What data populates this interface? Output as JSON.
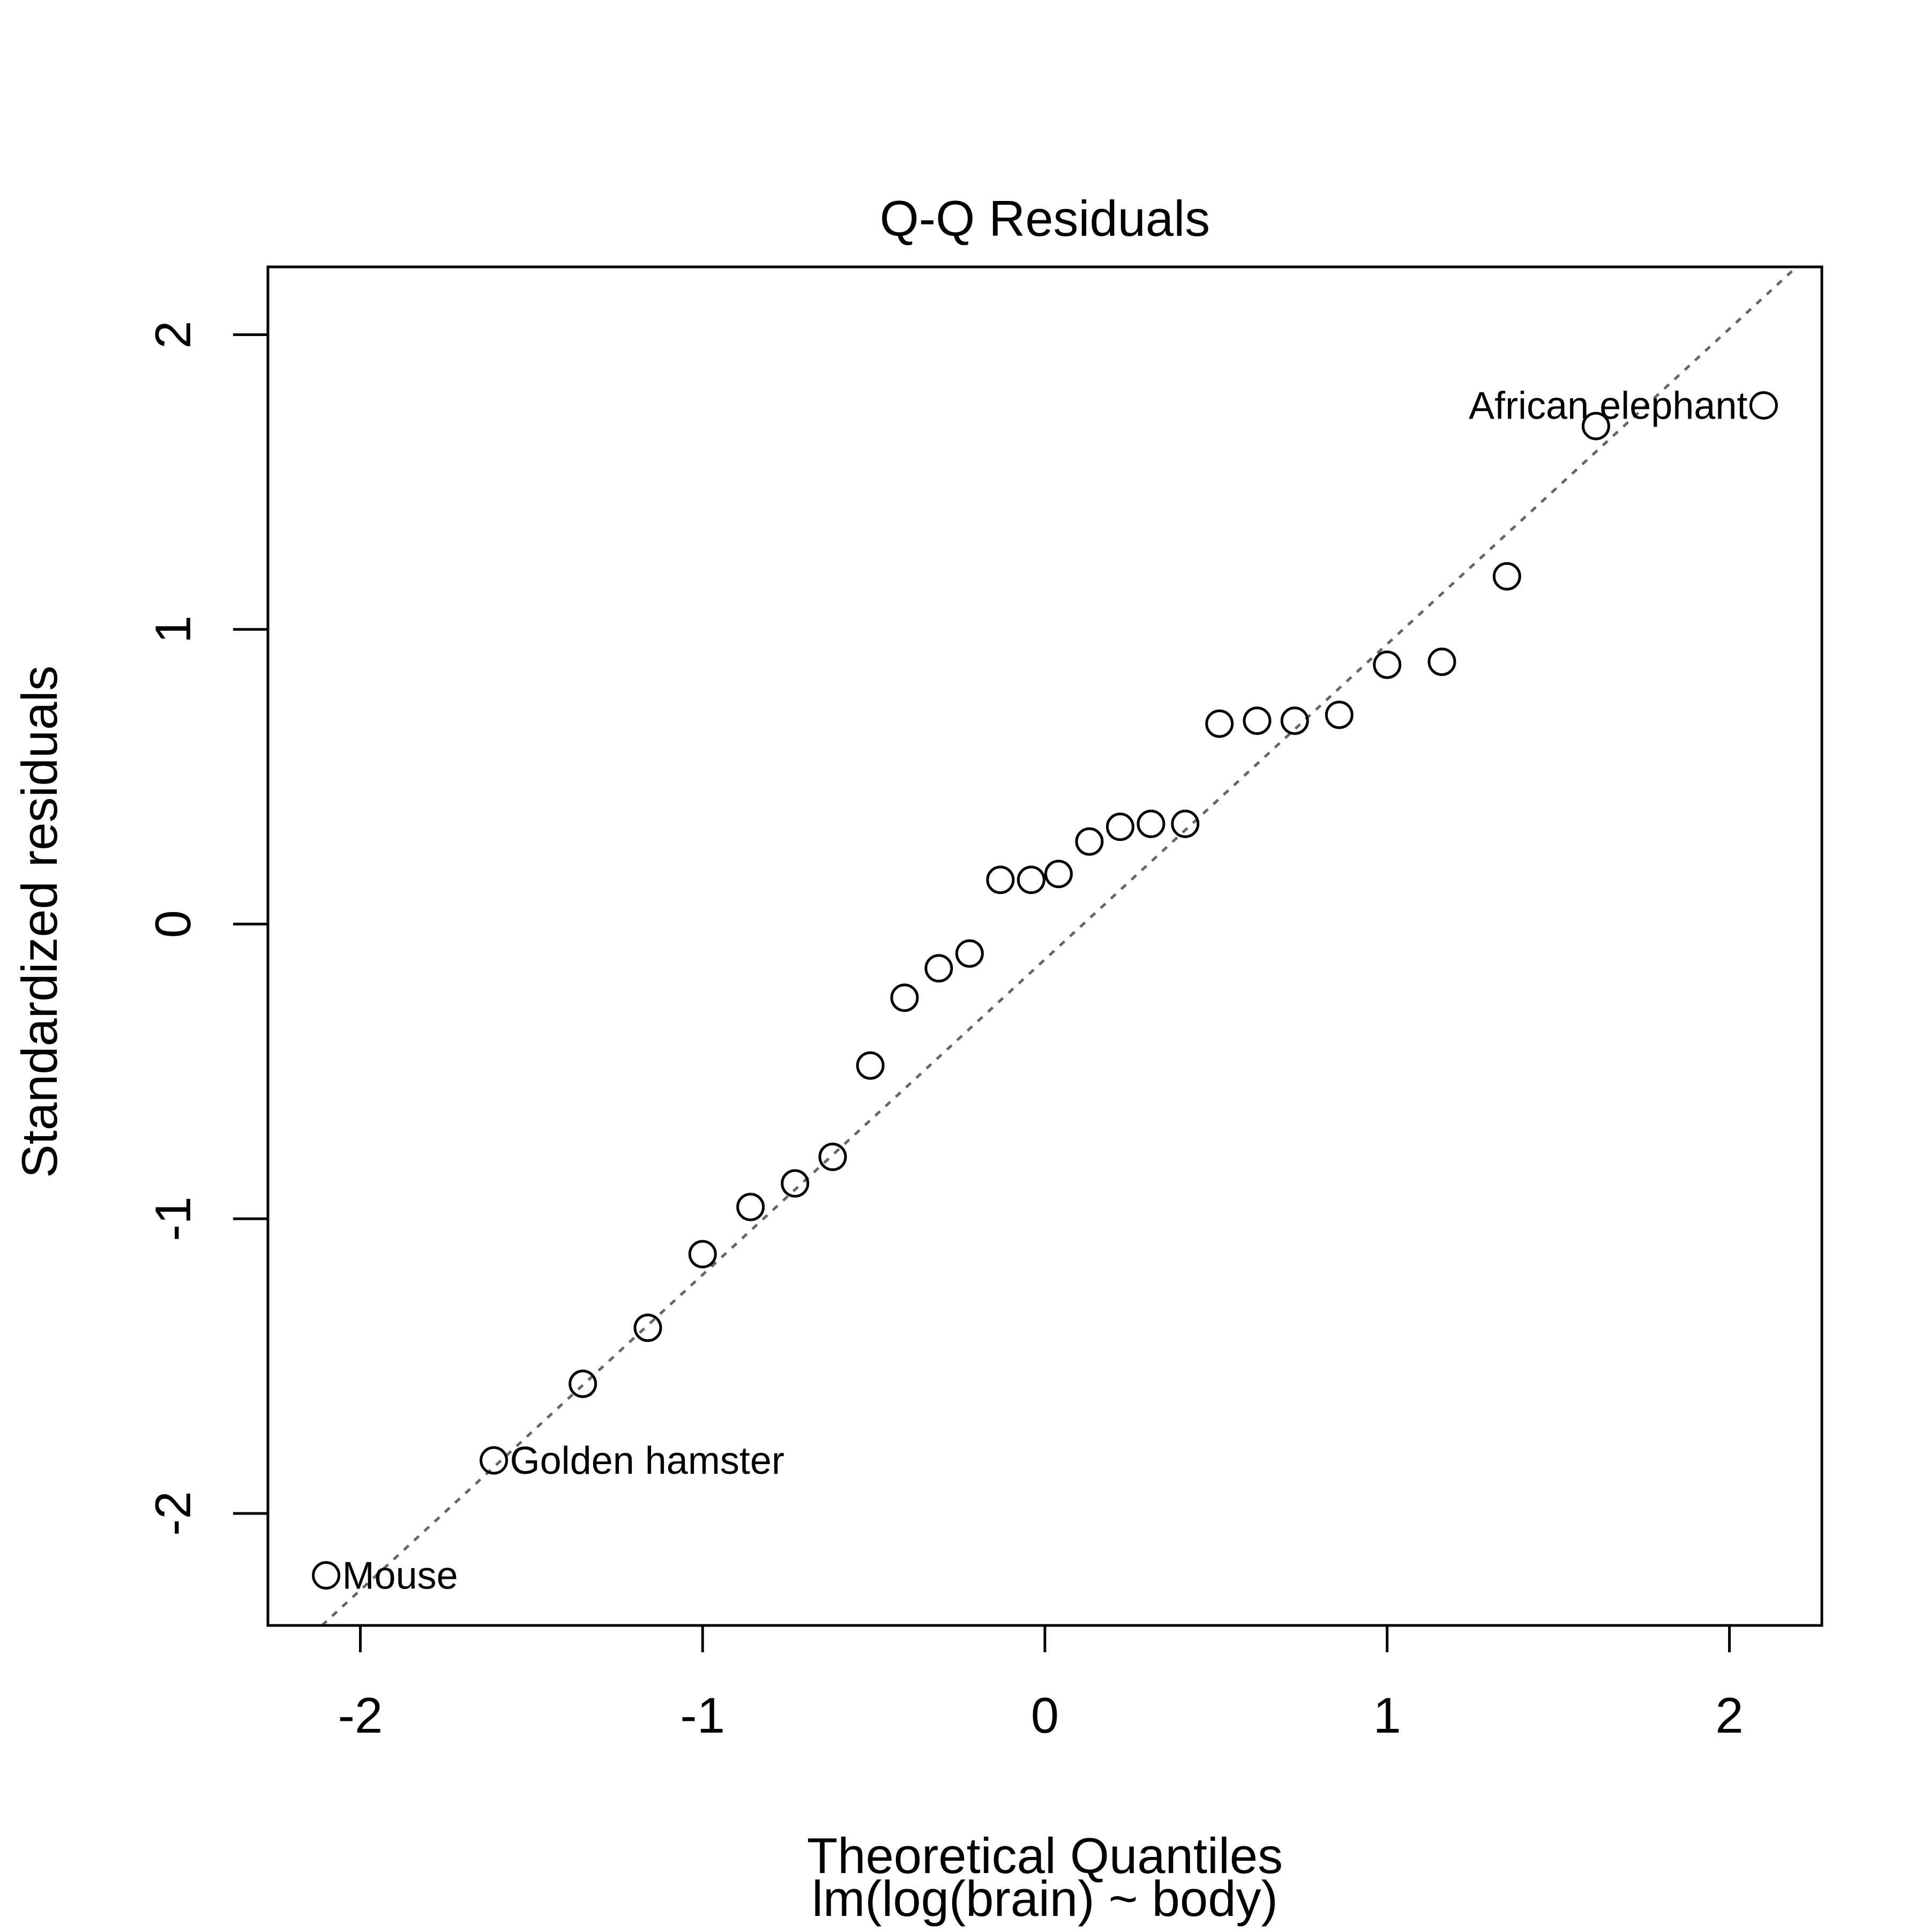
{
  "chart_data": {
    "type": "scatter",
    "title": "Q-Q Residuals",
    "xlabel": "Theoretical Quantiles",
    "xlabel_sub": "lm(log(brain) ~ body)",
    "ylabel": "Standardized residuals",
    "xlim": [
      -2.27,
      2.27
    ],
    "ylim": [
      -2.38,
      2.23
    ],
    "xticks": [
      -2,
      -1,
      0,
      1,
      2
    ],
    "xtick_labels": [
      "-2",
      "-1",
      "0",
      "1",
      "2"
    ],
    "yticks": [
      -2,
      -1,
      0,
      1,
      2
    ],
    "ytick_labels": [
      "-2",
      "-1",
      "0",
      "1",
      "2"
    ],
    "grid": false,
    "reference_line": {
      "style": "dotted",
      "color": "#666666",
      "slope": 1.07,
      "intercept": -0.12
    },
    "points": [
      {
        "x": -2.1,
        "y": -2.21,
        "label": "Mouse"
      },
      {
        "x": -1.61,
        "y": -1.82,
        "label": "Golden hamster"
      },
      {
        "x": -1.35,
        "y": -1.56,
        "label": ""
      },
      {
        "x": -1.16,
        "y": -1.37,
        "label": ""
      },
      {
        "x": -1.0,
        "y": -1.12,
        "label": ""
      },
      {
        "x": -0.86,
        "y": -0.96,
        "label": ""
      },
      {
        "x": -0.73,
        "y": -0.88,
        "label": ""
      },
      {
        "x": -0.62,
        "y": -0.79,
        "label": ""
      },
      {
        "x": -0.51,
        "y": -0.48,
        "label": ""
      },
      {
        "x": -0.41,
        "y": -0.25,
        "label": ""
      },
      {
        "x": -0.31,
        "y": -0.15,
        "label": ""
      },
      {
        "x": -0.22,
        "y": -0.1,
        "label": ""
      },
      {
        "x": -0.13,
        "y": 0.15,
        "label": ""
      },
      {
        "x": -0.04,
        "y": 0.15,
        "label": ""
      },
      {
        "x": 0.04,
        "y": 0.17,
        "label": ""
      },
      {
        "x": 0.13,
        "y": 0.28,
        "label": ""
      },
      {
        "x": 0.22,
        "y": 0.33,
        "label": ""
      },
      {
        "x": 0.31,
        "y": 0.34,
        "label": ""
      },
      {
        "x": 0.41,
        "y": 0.34,
        "label": ""
      },
      {
        "x": 0.51,
        "y": 0.68,
        "label": ""
      },
      {
        "x": 0.62,
        "y": 0.69,
        "label": ""
      },
      {
        "x": 0.73,
        "y": 0.69,
        "label": ""
      },
      {
        "x": 0.86,
        "y": 0.71,
        "label": ""
      },
      {
        "x": 1.0,
        "y": 0.88,
        "label": ""
      },
      {
        "x": 1.16,
        "y": 0.89,
        "label": ""
      },
      {
        "x": 1.35,
        "y": 1.18,
        "label": ""
      },
      {
        "x": 1.61,
        "y": 1.69,
        "label": ""
      },
      {
        "x": 2.1,
        "y": 1.76,
        "label": "African elephant"
      }
    ]
  }
}
